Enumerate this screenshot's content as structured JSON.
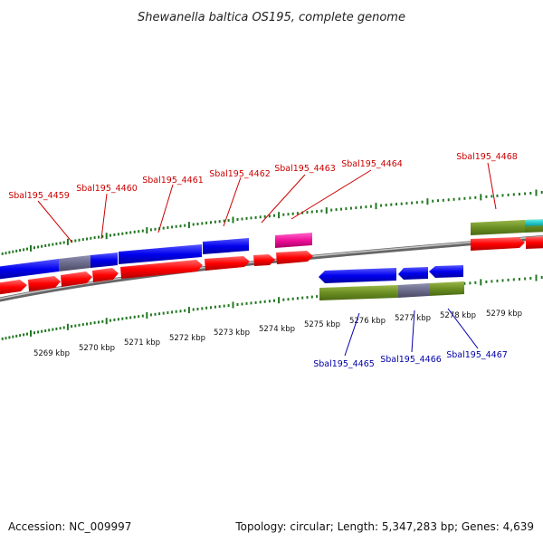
{
  "title": "Shewanella baltica OS195, complete genome",
  "footer": {
    "accession": "Accession: NC_009997",
    "topology": "Topology: circular; Length: 5,347,283 bp; Genes: 4,639"
  },
  "colors": {
    "forward_label": "#cc0000",
    "reverse_label": "#0000aa",
    "cds_red": "#ff0000",
    "cds_blue": "#0000ee",
    "cds_gray": "#6a6a8a",
    "cds_olive": "#6b8e23",
    "cds_pink": "#ee1199",
    "cds_cyan": "#22cccc",
    "tick_green": "#227722"
  },
  "kbp_ticks": [
    "5269 kbp",
    "5270 kbp",
    "5271 kbp",
    "5272 kbp",
    "5273 kbp",
    "5274 kbp",
    "5275 kbp",
    "5276 kbp",
    "5277 kbp",
    "5278 kbp",
    "5279 kbp"
  ],
  "forward_genes": [
    "Sbal195_4459",
    "Sbal195_4460",
    "Sbal195_4461",
    "Sbal195_4462",
    "Sbal195_4463",
    "Sbal195_4464",
    "Sbal195_4468"
  ],
  "reverse_genes": [
    "Sbal195_4465",
    "Sbal195_4466",
    "Sbal195_4467"
  ]
}
